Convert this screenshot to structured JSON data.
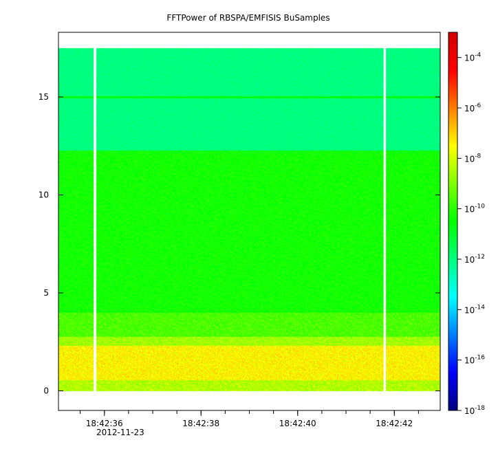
{
  "chart_data": {
    "type": "heatmap",
    "title": "FFTPower of RBSPA/EMFISIS  BuSamples",
    "xlabel": "",
    "ylabel": "",
    "x_axis": {
      "type": "time",
      "date": "2012-11-23",
      "range": [
        "18:42:35.05",
        "18:42:42.95"
      ],
      "ticks": [
        "18:42:36",
        "18:42:38",
        "18:42:40",
        "18:42:42"
      ]
    },
    "y_axis": {
      "range": [
        -1.0,
        18.3
      ],
      "ticks": [
        0,
        5,
        10,
        15
      ]
    },
    "colorbar": {
      "scale": "log",
      "range": [
        "1e-18",
        "1e-3"
      ],
      "tick_labels": [
        {
          "base": "10",
          "exp": "-18"
        },
        {
          "base": "10",
          "exp": "-16"
        },
        {
          "base": "10",
          "exp": "-14"
        },
        {
          "base": "10",
          "exp": "-12"
        },
        {
          "base": "10",
          "exp": "-10"
        },
        {
          "base": "10",
          "exp": "-8"
        },
        {
          "base": "10",
          "exp": "-6"
        },
        {
          "base": "10",
          "exp": "-4"
        }
      ],
      "colormap": [
        "#00007f",
        "#0000ff",
        "#007fff",
        "#00ffff",
        "#00ff7f",
        "#00ff00",
        "#7fff00",
        "#ffff00",
        "#ff7f00",
        "#ff0000",
        "#d00000"
      ]
    },
    "data_extent": {
      "y_min": 0,
      "y_max": 17.5
    },
    "bands": [
      {
        "y_from": 0.0,
        "y_to": 0.55,
        "level_log10": -8.4,
        "jitter": 0.7
      },
      {
        "y_from": 0.55,
        "y_to": 2.3,
        "level_log10": -7.4,
        "jitter": 0.6
      },
      {
        "y_from": 2.3,
        "y_to": 2.75,
        "level_log10": -8.6,
        "jitter": 0.6
      },
      {
        "y_from": 2.75,
        "y_to": 4.0,
        "level_log10": -9.6,
        "jitter": 0.6
      },
      {
        "y_from": 4.0,
        "y_to": 12.25,
        "level_log10": -10.3,
        "jitter": 0.5
      },
      {
        "y_from": 12.25,
        "y_to": 17.5,
        "level_log10": -12.0,
        "jitter": 0.25
      }
    ],
    "line_feature": {
      "y": 15.0,
      "level_log10": -10.6
    },
    "data_gaps": [
      "18:42:35.8",
      "18:42:41.8"
    ]
  }
}
